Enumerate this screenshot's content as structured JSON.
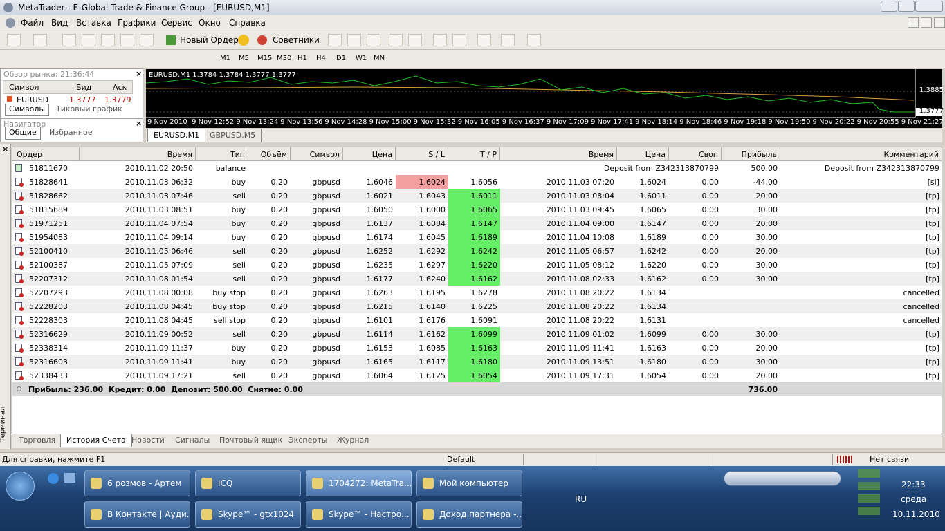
{
  "window": {
    "title": "MetaTrader - E-Global Trade & Finance Group - [EURUSD,M1]",
    "menu": [
      "Файл",
      "Вид",
      "Вставка",
      "Графики",
      "Сервис",
      "Окно",
      "Справка"
    ]
  },
  "toolbar": {
    "new_order": "Новый Ордер",
    "experts": "Советники",
    "timeframes": [
      "M1",
      "M5",
      "M15",
      "M30",
      "H1",
      "H4",
      "D1",
      "W1",
      "MN"
    ]
  },
  "market_watch": {
    "title": "Обзор рынка: 21:36:44",
    "headers": [
      "Символ",
      "Бид",
      "Аск"
    ],
    "row": [
      "EURUSD",
      "1.3777",
      "1.3779"
    ],
    "tabs": [
      "Символы",
      "Тиковый график"
    ],
    "active_tab": 0
  },
  "navigator": {
    "title": "Навигатор",
    "tabs": [
      "Общие",
      "Избранное"
    ],
    "active_tab": 0
  },
  "chart": {
    "label": "EURUSD,M1  1.3784 1.3784 1.3777 1.3777",
    "time_labels": [
      "9 Nov 2010",
      "9 Nov 12:52",
      "9 Nov 13:24",
      "9 Nov 13:56",
      "9 Nov 14:28",
      "9 Nov 15:00",
      "9 Nov 15:32",
      "9 Nov 16:05",
      "9 Nov 16:37",
      "9 Nov 17:09",
      "9 Nov 17:41",
      "9 Nov 18:14",
      "9 Nov 18:46",
      "9 Nov 19:18",
      "9 Nov 19:50",
      "9 Nov 20:22",
      "9 Nov 20:55",
      "9 Nov 21:27"
    ],
    "price_labels": [
      "1.3885",
      "1.3777"
    ],
    "tabs": [
      "EURUSD,M1",
      "GBPUSD,M5"
    ],
    "active_tab": 0
  },
  "terminal": {
    "side_label": "Терминал",
    "headers": [
      "Ордер",
      "Время",
      "Тип",
      "Объём",
      "Символ",
      "Цена",
      "S / L",
      "T / P",
      "Время",
      "Цена",
      "Своп",
      "Прибыль",
      "Комментарий"
    ],
    "rows": [
      [
        "51811670",
        "2010.11.02 20:50",
        "balance",
        null,
        null,
        null,
        null,
        null,
        null,
        null,
        "Deposit from Z342313870799",
        "500.00",
        "Deposit from Z342313870799"
      ],
      [
        "51828641",
        "2010.11.03 06:32",
        "buy",
        "0.20",
        "gbpusd",
        "1.6046",
        "1.6024",
        "1.6056",
        "2010.11.03 07:20",
        "1.6024",
        "0.00",
        "-44.00",
        "[sl]"
      ],
      [
        "51828662",
        "2010.11.03 07:46",
        "sell",
        "0.20",
        "gbpusd",
        "1.6021",
        "1.6043",
        "1.6011",
        "2010.11.03 08:04",
        "1.6011",
        "0.00",
        "20.00",
        "[tp]"
      ],
      [
        "51815689",
        "2010.11.03 08:51",
        "buy",
        "0.20",
        "gbpusd",
        "1.6050",
        "1.6000",
        "1.6065",
        "2010.11.03 09:45",
        "1.6065",
        "0.00",
        "30.00",
        "[tp]"
      ],
      [
        "51971251",
        "2010.11.04 07:54",
        "buy",
        "0.20",
        "gbpusd",
        "1.6137",
        "1.6084",
        "1.6147",
        "2010.11.04 09:00",
        "1.6147",
        "0.00",
        "20.00",
        "[tp]"
      ],
      [
        "51954083",
        "2010.11.04 09:14",
        "buy",
        "0.20",
        "gbpusd",
        "1.6174",
        "1.6045",
        "1.6189",
        "2010.11.04 10:08",
        "1.6189",
        "0.00",
        "30.00",
        "[tp]"
      ],
      [
        "52100410",
        "2010.11.05 06:46",
        "sell",
        "0.20",
        "gbpusd",
        "1.6252",
        "1.6292",
        "1.6242",
        "2010.11.05 06:57",
        "1.6242",
        "0.00",
        "20.00",
        "[tp]"
      ],
      [
        "52100387",
        "2010.11.05 07:09",
        "sell",
        "0.20",
        "gbpusd",
        "1.6235",
        "1.6297",
        "1.6220",
        "2010.11.05 08:12",
        "1.6220",
        "0.00",
        "30.00",
        "[tp]"
      ],
      [
        "52207312",
        "2010.11.08 01:54",
        "sell",
        "0.20",
        "gbpusd",
        "1.6177",
        "1.6240",
        "1.6162",
        "2010.11.08 02:33",
        "1.6162",
        "0.00",
        "30.00",
        "[tp]"
      ],
      [
        "52207293",
        "2010.11.08 00:08",
        "buy stop",
        "0.20",
        "gbpusd",
        "1.6263",
        "1.6195",
        "1.6278",
        "2010.11.08 20:22",
        "1.6134",
        null,
        null,
        "cancelled"
      ],
      [
        "52228203",
        "2010.11.08 04:45",
        "buy stop",
        "0.20",
        "gbpusd",
        "1.6215",
        "1.6140",
        "1.6225",
        "2010.11.08 20:22",
        "1.6134",
        null,
        null,
        "cancelled"
      ],
      [
        "52228303",
        "2010.11.08 04:45",
        "sell stop",
        "0.20",
        "gbpusd",
        "1.6101",
        "1.6176",
        "1.6091",
        "2010.11.08 20:22",
        "1.6131",
        null,
        null,
        "cancelled"
      ],
      [
        "52316629",
        "2010.11.09 00:52",
        "sell",
        "0.20",
        "gbpusd",
        "1.6114",
        "1.6162",
        "1.6099",
        "2010.11.09 01:02",
        "1.6099",
        "0.00",
        "30.00",
        "[tp]"
      ],
      [
        "52338314",
        "2010.11.09 11:37",
        "buy",
        "0.20",
        "gbpusd",
        "1.6153",
        "1.6085",
        "1.6163",
        "2010.11.09 11:41",
        "1.6163",
        "0.00",
        "20.00",
        "[tp]"
      ],
      [
        "52316603",
        "2010.11.09 11:41",
        "buy",
        "0.20",
        "gbpusd",
        "1.6165",
        "1.6117",
        "1.6180",
        "2010.11.09 13:51",
        "1.6180",
        "0.00",
        "30.00",
        "[tp]"
      ],
      [
        "52338433",
        "2010.11.09 17:21",
        "sell",
        "0.20",
        "gbpusd",
        "1.6064",
        "1.6125",
        "1.6054",
        "2010.11.09 17:31",
        "1.6054",
        "0.00",
        "20.00",
        "[tp]"
      ]
    ],
    "summary": {
      "text": "Прибыль: 236.00  Кредит: 0.00  Депозит: 500.00  Снятие: 0.00",
      "total": "736.00"
    },
    "tabs": [
      "Торговля",
      "История Счета",
      "Новости",
      "Сигналы",
      "Почтовый ящик",
      "Эксперты",
      "Журнал"
    ],
    "active_tab": 1
  },
  "status_bar": {
    "help": "Для справки, нажмите F1",
    "profile": "Default",
    "connection": "Нет связи"
  },
  "taskbar": {
    "buttons": [
      "6 розмов - Артем",
      "ICQ",
      "1704272: MetaTra...",
      "Мой компьютер",
      "В Контакте | Ауди...",
      "Skype™ - gtx1024",
      "Skype™ - Настро...",
      "Доход партнера -..."
    ],
    "active_button": 2,
    "language": "RU",
    "time": "22:33",
    "weekday": "среда",
    "date": "10.11.2010"
  }
}
